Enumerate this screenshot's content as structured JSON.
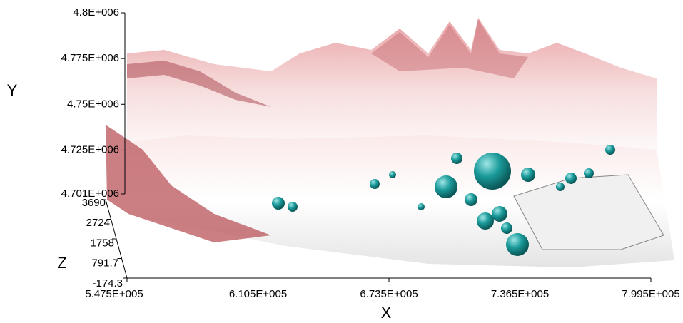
{
  "chart_data": {
    "type": "surface3d",
    "xlabel": "X",
    "ylabel": "Y",
    "zlabel": "Z",
    "xlim": [
      547500,
      799500
    ],
    "xticks": [
      {
        "value": 547500,
        "label": "5.475E+005"
      },
      {
        "value": 610500,
        "label": "6.105E+005"
      },
      {
        "value": 673500,
        "label": "6.735E+005"
      },
      {
        "value": 736500,
        "label": "7.365E+005"
      },
      {
        "value": 799500,
        "label": "7.995E+005"
      }
    ],
    "ylim": [
      4701000,
      4800000
    ],
    "yticks": [
      {
        "value": 4701000,
        "label": "4.701E+006"
      },
      {
        "value": 4725000,
        "label": "4.725E+006"
      },
      {
        "value": 4750000,
        "label": "4.75E+006"
      },
      {
        "value": 4775000,
        "label": "4.775E+006"
      },
      {
        "value": 4800000,
        "label": "4.8E+006"
      }
    ],
    "zlim": [
      -174.3,
      3690
    ],
    "zticks": [
      -174.3,
      791.7,
      1758,
      2724,
      3690
    ]
  }
}
